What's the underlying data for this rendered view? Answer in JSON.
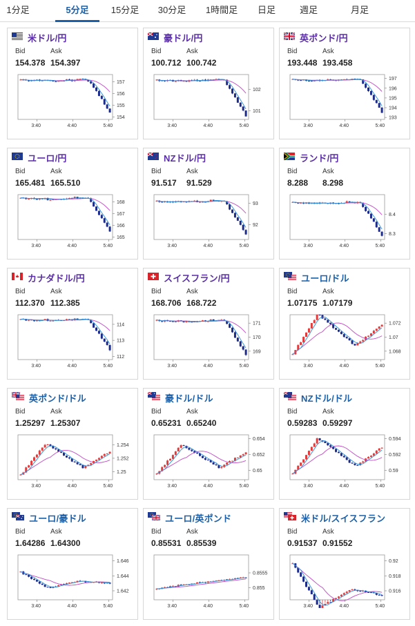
{
  "tabs": [
    {
      "label": "1分足",
      "active": false
    },
    {
      "label": "5分足",
      "active": true
    },
    {
      "label": "15分足",
      "active": false
    },
    {
      "label": "30分足",
      "active": false
    },
    {
      "label": "1時間足",
      "active": false
    },
    {
      "label": "日足",
      "active": false
    },
    {
      "label": "週足",
      "active": false
    },
    {
      "label": "月足",
      "active": false
    }
  ],
  "labels": {
    "bid": "Bid",
    "ask": "Ask"
  },
  "colors": {
    "up": "#e23b3b",
    "down": "#1c2a8a",
    "ma_short": "#2c8fd6",
    "ma_long": "#c04ac6",
    "jpy_title": "#5a2ea6",
    "usd_title": "#1a5fa8"
  },
  "pairs": [
    {
      "name": "米ドル/円",
      "flag": "us",
      "bid": "154.378",
      "ask": "154.397"
    },
    {
      "name": "豪ドル/円",
      "flag": "au",
      "bid": "100.712",
      "ask": "100.742"
    },
    {
      "name": "英ポンド/円",
      "flag": "gb",
      "bid": "193.448",
      "ask": "193.458"
    },
    {
      "name": "ユーロ/円",
      "flag": "eu",
      "bid": "165.481",
      "ask": "165.510"
    },
    {
      "name": "NZドル/円",
      "flag": "nz",
      "bid": "91.517",
      "ask": "91.529"
    },
    {
      "name": "ランド/円",
      "flag": "za",
      "bid": "8.288",
      "ask": "8.298"
    },
    {
      "name": "カナダドル/円",
      "flag": "ca",
      "bid": "112.370",
      "ask": "112.385"
    },
    {
      "name": "スイスフラン/円",
      "flag": "ch",
      "bid": "168.706",
      "ask": "168.722"
    },
    {
      "name": "ユーロ/ドル",
      "flag": "eu-us",
      "bid": "1.07175",
      "ask": "1.07179"
    },
    {
      "name": "英ポンド/ドル",
      "flag": "gb-us",
      "bid": "1.25297",
      "ask": "1.25307"
    },
    {
      "name": "豪ドル/ドル",
      "flag": "au-us",
      "bid": "0.65231",
      "ask": "0.65240"
    },
    {
      "name": "NZドル/ドル",
      "flag": "nz-us",
      "bid": "0.59283",
      "ask": "0.59297"
    },
    {
      "name": "ユーロ/豪ドル",
      "flag": "eu-au",
      "bid": "1.64286",
      "ask": "1.64300"
    },
    {
      "name": "ユーロ/英ポンド",
      "flag": "eu-gb",
      "bid": "0.85531",
      "ask": "0.85539"
    },
    {
      "name": "米ドル/スイスフラン",
      "flag": "us-ch",
      "bid": "0.91537",
      "ask": "0.91552"
    }
  ],
  "chart_data": [
    {
      "type": "candlestick",
      "pair": "米ドル/円",
      "x_ticks": [
        "3:40",
        "4:40",
        "5:40"
      ],
      "y_ticks": [
        "157",
        "156",
        "155",
        "154"
      ],
      "ylim": [
        153.8,
        157.6
      ],
      "shape": "drop",
      "start": 157.15,
      "end": 154.4
    },
    {
      "type": "candlestick",
      "pair": "豪ドル/円",
      "x_ticks": [
        "3:40",
        "4:40",
        "5:40"
      ],
      "y_ticks": [
        "102",
        "101"
      ],
      "ylim": [
        100.6,
        102.7
      ],
      "shape": "drop",
      "start": 102.45,
      "end": 100.75
    },
    {
      "type": "candlestick",
      "pair": "英ポンド/円",
      "x_ticks": [
        "3:40",
        "4:40",
        "5:40"
      ],
      "y_ticks": [
        "197",
        "196",
        "195",
        "194",
        "193"
      ],
      "ylim": [
        192.8,
        197.4
      ],
      "shape": "drop",
      "start": 196.9,
      "end": 193.5
    },
    {
      "type": "candlestick",
      "pair": "ユーロ/円",
      "x_ticks": [
        "3:40",
        "4:40",
        "5:40"
      ],
      "y_ticks": [
        "168",
        "167",
        "166",
        "165"
      ],
      "ylim": [
        164.8,
        168.6
      ],
      "shape": "drop",
      "start": 168.3,
      "end": 165.5
    },
    {
      "type": "candlestick",
      "pair": "NZドル/円",
      "x_ticks": [
        "3:40",
        "4:40",
        "5:40"
      ],
      "y_ticks": [
        "93",
        "92"
      ],
      "ylim": [
        91.3,
        93.4
      ],
      "shape": "drop",
      "start": 93.1,
      "end": 91.55
    },
    {
      "type": "candlestick",
      "pair": "ランド/円",
      "x_ticks": [
        "3:40",
        "4:40",
        "5:40"
      ],
      "y_ticks": [
        "8.4",
        "8.3"
      ],
      "ylim": [
        8.27,
        8.5
      ],
      "shape": "drop",
      "start": 8.46,
      "end": 8.29
    },
    {
      "type": "candlestick",
      "pair": "カナダドル/円",
      "x_ticks": [
        "3:40",
        "4:40",
        "5:40"
      ],
      "y_ticks": [
        "114",
        "113",
        "112"
      ],
      "ylim": [
        111.8,
        114.6
      ],
      "shape": "drop",
      "start": 114.3,
      "end": 112.4
    },
    {
      "type": "candlestick",
      "pair": "スイスフラン/円",
      "x_ticks": [
        "3:40",
        "4:40",
        "5:40"
      ],
      "y_ticks": [
        "171",
        "170",
        "169"
      ],
      "ylim": [
        168.4,
        171.6
      ],
      "shape": "drop",
      "start": 171.2,
      "end": 168.75
    },
    {
      "type": "candlestick",
      "pair": "ユーロ/ドル",
      "x_ticks": [
        "3:40",
        "4:40",
        "5:40"
      ],
      "y_ticks": [
        "1.072",
        "1.07",
        "1.068"
      ],
      "ylim": [
        1.0668,
        1.0732
      ],
      "shape": "wave",
      "start": 1.0675,
      "end": 1.0718
    },
    {
      "type": "candlestick",
      "pair": "英ポンド/ドル",
      "x_ticks": [
        "3:40",
        "4:40",
        "5:40"
      ],
      "y_ticks": [
        "1.254",
        "1.252",
        "1.25"
      ],
      "ylim": [
        1.2488,
        1.2555
      ],
      "shape": "wave",
      "start": 1.2495,
      "end": 1.253
    },
    {
      "type": "candlestick",
      "pair": "豪ドル/ドル",
      "x_ticks": [
        "3:40",
        "4:40",
        "5:40"
      ],
      "y_ticks": [
        "0.654",
        "0.652",
        "0.65"
      ],
      "ylim": [
        0.6488,
        0.6545
      ],
      "shape": "wave",
      "start": 0.6495,
      "end": 0.6523
    },
    {
      "type": "candlestick",
      "pair": "NZドル/ドル",
      "x_ticks": [
        "3:40",
        "4:40",
        "5:40"
      ],
      "y_ticks": [
        "0.594",
        "0.592",
        "0.59"
      ],
      "ylim": [
        0.5888,
        0.5945
      ],
      "shape": "wave",
      "start": 0.5895,
      "end": 0.5929
    },
    {
      "type": "candlestick",
      "pair": "ユーロ/豪ドル",
      "x_ticks": [
        "3:40",
        "4:40",
        "5:40"
      ],
      "y_ticks": [
        "1.646",
        "1.644",
        "1.642"
      ],
      "ylim": [
        1.6408,
        1.6468
      ],
      "shape": "dip",
      "start": 1.6445,
      "end": 1.643
    },
    {
      "type": "candlestick",
      "pair": "ユーロ/英ポンド",
      "x_ticks": [
        "3:40",
        "4:40",
        "5:40"
      ],
      "y_ticks": [
        "0.8555",
        "0.855"
      ],
      "ylim": [
        0.8546,
        0.8561
      ],
      "shape": "rise",
      "start": 0.85495,
      "end": 0.85535
    },
    {
      "type": "candlestick",
      "pair": "米ドル/スイスフラン",
      "x_ticks": [
        "3:40",
        "4:40",
        "5:40"
      ],
      "y_ticks": [
        "0.92",
        "0.918",
        "0.916"
      ],
      "ylim": [
        0.9148,
        0.9208
      ],
      "shape": "dip",
      "start": 0.9196,
      "end": 0.9154
    }
  ]
}
